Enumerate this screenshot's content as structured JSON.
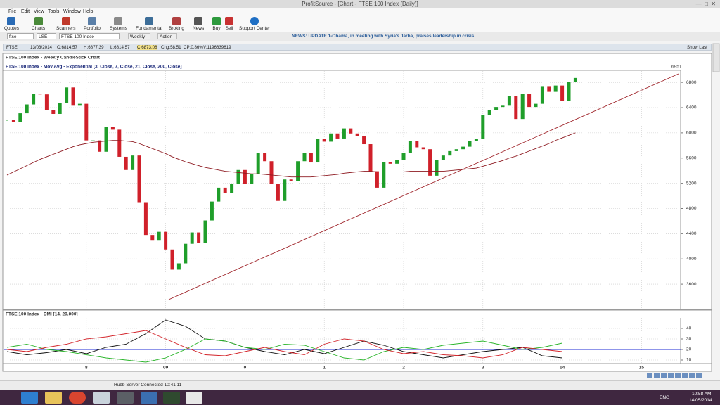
{
  "window": {
    "title": "ProfitSource - [Chart - FTSE 100 Index (Daily)]"
  },
  "menu": [
    "File",
    "Edit",
    "View",
    "Tools",
    "Window",
    "Help"
  ],
  "toolbar": [
    "Quotes",
    "Charts",
    "Scanners",
    "Portfolio",
    "Systems",
    "Fundamental",
    "Broking",
    "News",
    "Buy",
    "Sell",
    "Support Center"
  ],
  "symbol_bar": {
    "symbol": "ftse",
    "exchange": "LSE",
    "name": "FTSE 100 Index",
    "period": "Weekly",
    "action": "Action",
    "news": "NEWS: UPDATE 1-Obama, in meeting with Syria's Jarba, praises leadership in crisis:"
  },
  "quote_bar": {
    "items": [
      "FTSE",
      "13/03/2014",
      "O:6814.57",
      "H:6877.39",
      "L:6814.57",
      "C:6873.08",
      "Chg:58.51",
      "CP:0.86%",
      "V:1196639619"
    ],
    "show_last": "Show Last"
  },
  "status": "Hubb Server Connected 10:41:11",
  "taskbar": {
    "language": "ENG",
    "time": "10:58 AM",
    "date": "14/05/2014"
  },
  "chart_data": [
    {
      "type": "candlestick",
      "title": "FTSE 100 Index - Weekly CandleStick Chart",
      "subtitle": "FTSE 100 Index - Mov Avg - Exponential [3, Close, 7, Close, 21, Close, 200, Close]",
      "last_label": "6951",
      "x": [
        "2007-01",
        "2007-02",
        "2007-03",
        "2007-04",
        "2007-05",
        "2007-06",
        "2007-07",
        "2007-08",
        "2007-09",
        "2007-10",
        "2007-11",
        "2007-12",
        "2008-01",
        "2008-02",
        "2008-03",
        "2008-04",
        "2008-05",
        "2008-06",
        "2008-07",
        "2008-08",
        "2008-09",
        "2008-10",
        "2008-11",
        "2008-12",
        "2009-01",
        "2009-02",
        "2009-03",
        "2009-04",
        "2009-05",
        "2009-06",
        "2009-07",
        "2009-08",
        "2009-09",
        "2009-10",
        "2009-11",
        "2009-12",
        "2010-01",
        "2010-02",
        "2010-03",
        "2010-04",
        "2010-05",
        "2010-06",
        "2010-07",
        "2010-08",
        "2010-09",
        "2010-10",
        "2010-11",
        "2010-12",
        "2011-01",
        "2011-02",
        "2011-03",
        "2011-04",
        "2011-05",
        "2011-06",
        "2011-07",
        "2011-08",
        "2011-09",
        "2011-10",
        "2011-11",
        "2011-12",
        "2012-01",
        "2012-02",
        "2012-03",
        "2012-04",
        "2012-05",
        "2012-06",
        "2012-07",
        "2012-08",
        "2012-09",
        "2012-10",
        "2012-11",
        "2012-12",
        "2013-01",
        "2013-02",
        "2013-03",
        "2013-04",
        "2013-05",
        "2013-06",
        "2013-07",
        "2013-08",
        "2013-09",
        "2013-10",
        "2013-11",
        "2013-12",
        "2014-01",
        "2014-02",
        "2014-03"
      ],
      "series": [
        {
          "up_color": "#1f9e2a",
          "down_color": "#d0202a",
          "values": [
            6200,
            6170,
            6310,
            6450,
            6620,
            6610,
            6360,
            6300,
            6470,
            6720,
            6430,
            6460,
            5880,
            5880,
            5700,
            6090,
            6050,
            5620,
            5410,
            5640,
            4900,
            4380,
            4290,
            4430,
            4150,
            3830,
            3930,
            4240,
            4420,
            4250,
            4610,
            4910,
            5130,
            5040,
            5190,
            5410,
            5190,
            5350,
            5680,
            5550,
            5190,
            4920,
            5260,
            5230,
            5550,
            5680,
            5530,
            5900,
            5860,
            5990,
            5910,
            6070,
            5990,
            5950,
            5820,
            5390,
            5130,
            5540,
            5510,
            5570,
            5680,
            5870,
            5770,
            5740,
            5320,
            5570,
            5640,
            5710,
            5740,
            5780,
            5870,
            5900,
            6280,
            6360,
            6410,
            6430,
            6580,
            6220,
            6620,
            6410,
            6460,
            6730,
            6650,
            6750,
            6510,
            6810,
            6870
          ]
        },
        {
          "color": "#8e1b22",
          "values": [
            5330,
            5380,
            5430,
            5480,
            5530,
            5580,
            5620,
            5660,
            5700,
            5740,
            5780,
            5810,
            5830,
            5850,
            5860,
            5870,
            5880,
            5880,
            5870,
            5860,
            5830,
            5790,
            5750,
            5710,
            5670,
            5620,
            5580,
            5540,
            5510,
            5480,
            5450,
            5430,
            5410,
            5390,
            5380,
            5370,
            5360,
            5350,
            5350,
            5340,
            5330,
            5320,
            5310,
            5300,
            5300,
            5300,
            5300,
            5310,
            5320,
            5330,
            5340,
            5360,
            5370,
            5380,
            5390,
            5390,
            5380,
            5380,
            5380,
            5380,
            5380,
            5390,
            5390,
            5390,
            5390,
            5390,
            5390,
            5400,
            5410,
            5420,
            5430,
            5440,
            5470,
            5500,
            5530,
            5560,
            5600,
            5630,
            5670,
            5710,
            5750,
            5790,
            5830,
            5880,
            5920,
            5960,
            6000
          ]
        }
      ],
      "ylim": [
        3300,
        6980
      ],
      "yticks": [
        3600,
        4000,
        4400,
        4800,
        5200,
        5600,
        6000,
        6400,
        6800
      ],
      "xticks": [
        {
          "value": "2008-01",
          "label": "8"
        },
        {
          "value": "2009-01",
          "label": "09"
        },
        {
          "value": "2010-01",
          "label": "0"
        },
        {
          "value": "2011-01",
          "label": "1"
        },
        {
          "value": "2012-01",
          "label": "2"
        },
        {
          "value": "2013-01",
          "label": "3"
        },
        {
          "value": "2014-01",
          "label": "14"
        },
        {
          "value": "2015-01",
          "label": "15"
        }
      ],
      "grid": true
    },
    {
      "type": "line",
      "title": "FTSE 100 Index - DMI [14, 20.000]",
      "x": [
        "2007-01",
        "2007-04",
        "2007-07",
        "2007-10",
        "2008-01",
        "2008-04",
        "2008-07",
        "2008-10",
        "2009-01",
        "2009-04",
        "2009-07",
        "2009-10",
        "2010-01",
        "2010-04",
        "2010-07",
        "2010-10",
        "2011-01",
        "2011-04",
        "2011-07",
        "2011-10",
        "2012-01",
        "2012-04",
        "2012-07",
        "2012-10",
        "2013-01",
        "2013-04",
        "2013-07",
        "2013-10",
        "2014-01"
      ],
      "series": [
        {
          "color": "#111111",
          "values": [
            18,
            15,
            17,
            20,
            16,
            22,
            25,
            35,
            48,
            42,
            30,
            28,
            22,
            18,
            15,
            20,
            16,
            22,
            28,
            24,
            18,
            15,
            12,
            15,
            18,
            20,
            22,
            14,
            12
          ]
        },
        {
          "color": "#2bb52b",
          "values": [
            22,
            25,
            20,
            18,
            15,
            12,
            10,
            8,
            12,
            20,
            30,
            28,
            22,
            20,
            25,
            24,
            18,
            12,
            10,
            18,
            22,
            20,
            24,
            26,
            28,
            24,
            20,
            22,
            26
          ]
        },
        {
          "color": "#d3252b",
          "values": [
            20,
            18,
            22,
            25,
            30,
            32,
            35,
            38,
            30,
            22,
            15,
            14,
            18,
            22,
            18,
            15,
            25,
            30,
            28,
            20,
            16,
            18,
            15,
            14,
            12,
            15,
            22,
            20,
            18
          ]
        }
      ],
      "threshold": 20,
      "threshold_color": "#1f2bd6",
      "ylim": [
        8,
        50
      ],
      "yticks": [
        10,
        20,
        30,
        40
      ],
      "grid": true
    }
  ]
}
